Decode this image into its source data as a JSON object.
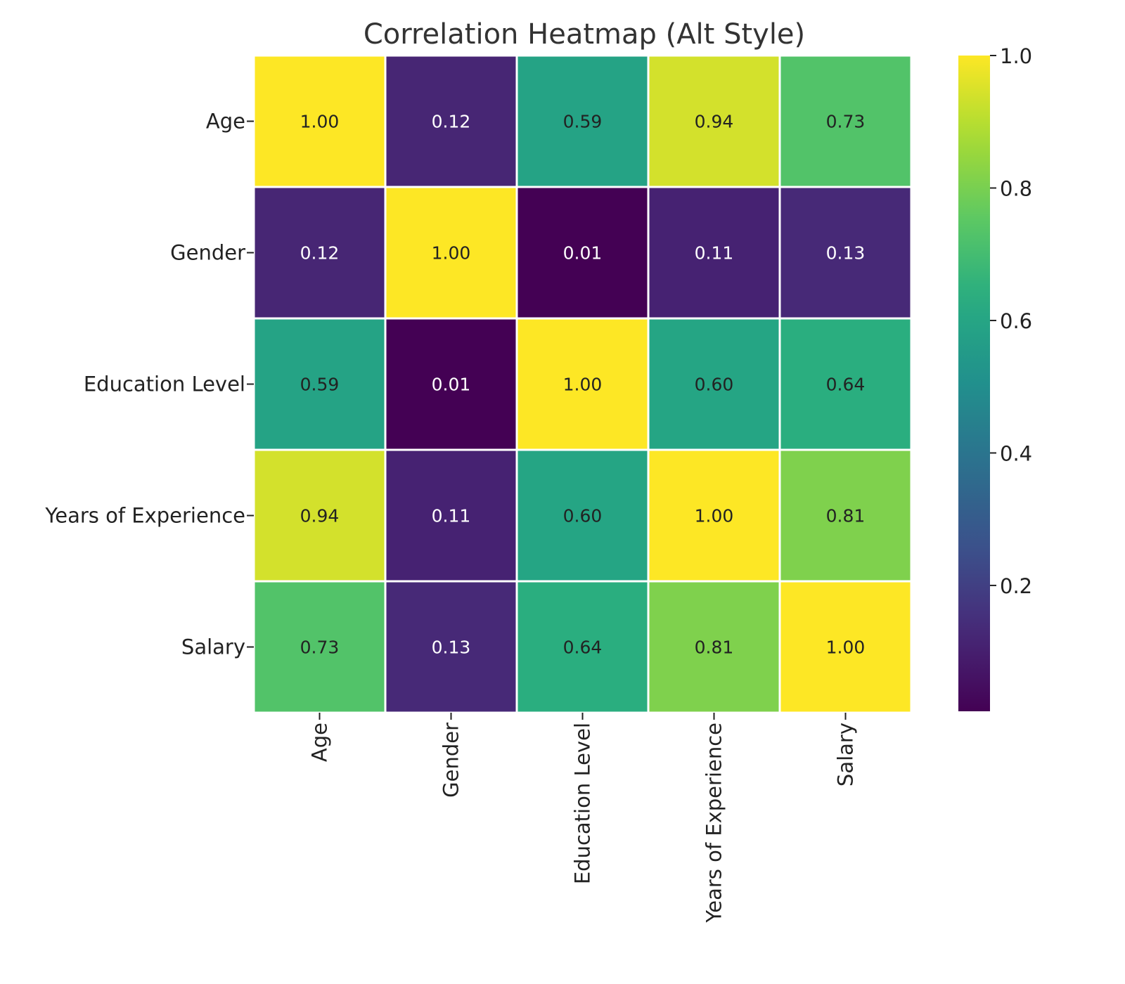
{
  "chart_data": {
    "type": "heatmap",
    "title": "Correlation Heatmap (Alt Style)",
    "rows": [
      "Age",
      "Gender",
      "Education Level",
      "Years of Experience",
      "Salary"
    ],
    "columns": [
      "Age",
      "Gender",
      "Education Level",
      "Years of Experience",
      "Salary"
    ],
    "values": [
      [
        1.0,
        0.12,
        0.59,
        0.94,
        0.73
      ],
      [
        0.12,
        1.0,
        0.01,
        0.11,
        0.13
      ],
      [
        0.59,
        0.01,
        1.0,
        0.6,
        0.64
      ],
      [
        0.94,
        0.11,
        0.6,
        1.0,
        0.81
      ],
      [
        0.73,
        0.13,
        0.64,
        0.81,
        1.0
      ]
    ],
    "value_format": "0.00",
    "colormap": "viridis",
    "colorbar": {
      "range": [
        0.01,
        1.0
      ],
      "ticks": [
        0.2,
        0.4,
        0.6,
        0.8,
        1.0
      ],
      "tick_labels": [
        "0.2",
        "0.4",
        "0.6",
        "0.8",
        "1.0"
      ]
    },
    "colors": {
      "cell_border": "#ffffff",
      "dark_text": "#222222",
      "light_text": "#ffffff"
    }
  }
}
